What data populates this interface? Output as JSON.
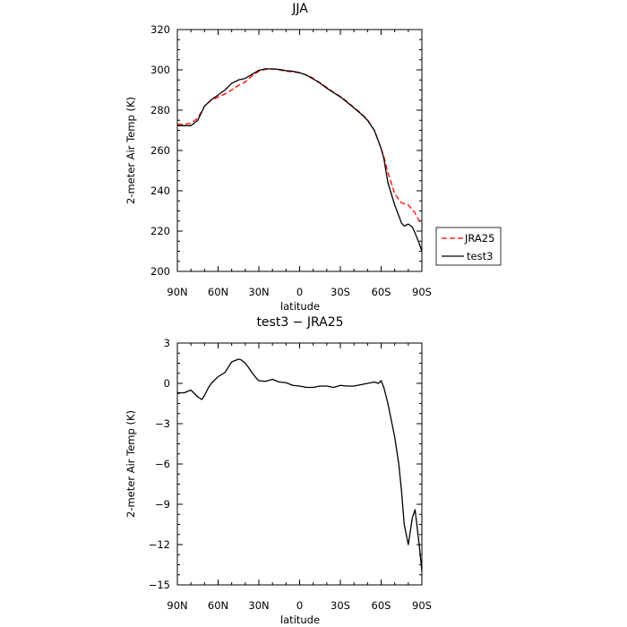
{
  "chart_data": [
    {
      "type": "line",
      "title": "JJA",
      "xlabel": "latitude",
      "ylabel": "2-meter Air Temp (K)",
      "xlim": [
        90,
        -90
      ],
      "ylim": [
        200,
        320
      ],
      "xticks": [
        90,
        60,
        30,
        0,
        -30,
        -60,
        -90
      ],
      "xtick_labels": [
        "90N",
        "60N",
        "30N",
        "0",
        "30S",
        "60S",
        "90S"
      ],
      "yticks": [
        200,
        220,
        240,
        260,
        280,
        300,
        320
      ],
      "ytick_labels": [
        "200",
        "220",
        "240",
        "260",
        "280",
        "300",
        "320"
      ],
      "grid": false,
      "legend_position": "outside-right",
      "series": [
        {
          "name": "JRA25",
          "color": "#ff0000",
          "dash": "dashed",
          "x": [
            90,
            85,
            80,
            75,
            70,
            65,
            60,
            55,
            50,
            45,
            40,
            35,
            30,
            25,
            20,
            15,
            10,
            5,
            0,
            -5,
            -10,
            -15,
            -20,
            -25,
            -30,
            -35,
            -40,
            -45,
            -50,
            -55,
            -60,
            -62,
            -65,
            -70,
            -75,
            -80,
            -85,
            -88,
            -90
          ],
          "y": [
            273,
            273,
            273.5,
            276,
            282,
            285,
            286.5,
            288,
            290,
            292.3,
            294,
            297,
            299.3,
            300.3,
            300.4,
            300,
            299.3,
            299,
            298.5,
            297.5,
            295.8,
            293.6,
            291.2,
            288.9,
            286.8,
            284.2,
            281.4,
            278.6,
            275.2,
            270,
            261,
            257,
            249,
            238.5,
            234,
            233,
            229,
            225,
            224
          ]
        },
        {
          "name": "test3",
          "color": "#000000",
          "dash": "solid",
          "x": [
            90,
            85,
            80,
            75,
            70,
            65,
            60,
            55,
            50,
            45,
            40,
            35,
            30,
            25,
            20,
            15,
            10,
            5,
            0,
            -5,
            -10,
            -15,
            -20,
            -25,
            -30,
            -35,
            -40,
            -45,
            -50,
            -55,
            -60,
            -62,
            -65,
            -70,
            -75,
            -77,
            -80,
            -83,
            -85,
            -88,
            -90
          ],
          "y": [
            272.3,
            272.3,
            272.3,
            275,
            282,
            285.2,
            287.5,
            290,
            293.3,
            295,
            295.8,
            297.8,
            299.8,
            300.5,
            300.5,
            300.2,
            299.6,
            299.3,
            298.6,
            297.4,
            295.5,
            293.4,
            290.9,
            288.7,
            286.6,
            283.9,
            281.1,
            278.3,
            275,
            270,
            261,
            256,
            244,
            233,
            224,
            222.5,
            223.5,
            222,
            219,
            214,
            210
          ]
        }
      ]
    },
    {
      "type": "line",
      "title": "test3 − JRA25",
      "xlabel": "latitude",
      "ylabel": "2-meter Air Temp (K)",
      "xlim": [
        90,
        -90
      ],
      "ylim": [
        -15,
        3
      ],
      "xticks": [
        90,
        60,
        30,
        0,
        -30,
        -60,
        -90
      ],
      "xtick_labels": [
        "90N",
        "60N",
        "30N",
        "0",
        "30S",
        "60S",
        "90S"
      ],
      "yticks": [
        -15,
        -12,
        -9,
        -6,
        -3,
        0,
        3
      ],
      "ytick_labels": [
        "−15",
        "−12",
        "−9",
        "−6",
        "−3",
        "0",
        "3"
      ],
      "grid": false,
      "series": [
        {
          "name": "",
          "color": "#000000",
          "dash": "solid",
          "x": [
            90,
            85,
            80,
            75,
            72,
            70,
            67,
            65,
            60,
            55,
            50,
            45,
            43,
            40,
            37,
            35,
            32,
            30,
            25,
            20,
            15,
            10,
            5,
            0,
            -5,
            -10,
            -15,
            -20,
            -25,
            -30,
            -35,
            -40,
            -45,
            -50,
            -55,
            -58,
            -60,
            -62,
            -65,
            -68,
            -70,
            -73,
            -75,
            -77,
            -80,
            -83,
            -85,
            -88,
            -90
          ],
          "y": [
            -0.7,
            -0.7,
            -0.5,
            -1.0,
            -1.2,
            -0.9,
            -0.3,
            0,
            0.5,
            0.8,
            1.6,
            1.8,
            1.75,
            1.5,
            1.1,
            0.8,
            0.4,
            0.2,
            0.15,
            0.3,
            0.1,
            0.05,
            -0.15,
            -0.2,
            -0.3,
            -0.3,
            -0.2,
            -0.2,
            -0.3,
            -0.15,
            -0.2,
            -0.2,
            -0.1,
            0,
            0.1,
            0,
            0.2,
            -0.3,
            -1.5,
            -3,
            -4,
            -6,
            -8,
            -10.5,
            -12,
            -10,
            -9.4,
            -12,
            -14
          ]
        }
      ]
    }
  ]
}
